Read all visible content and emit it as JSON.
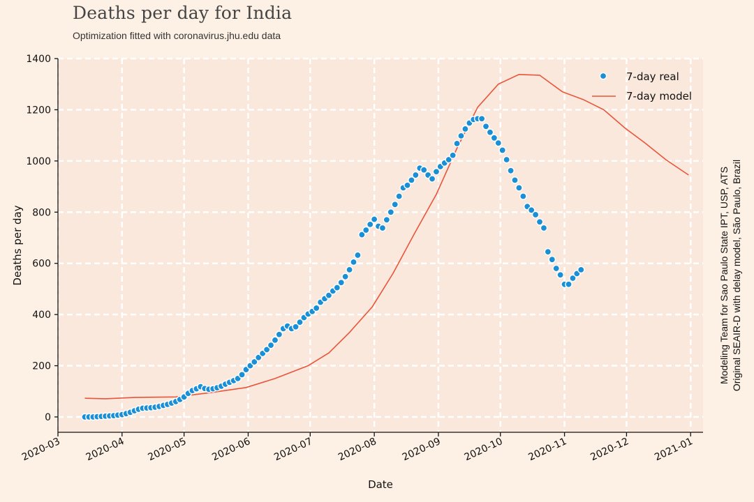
{
  "header": {
    "title": "Deaths per day for India",
    "subtitle": "Optimization fitted with coronavirus.jhu.edu data"
  },
  "credits": {
    "line1": "Modeling Team for Sao Paulo State IPT, USP, ATS",
    "line2": "Original SEAIR-D with delay model, São Paulo, Brazil"
  },
  "colors": {
    "background": "#fdf1e6",
    "plot_background": "#fae8dc",
    "grid": "#ffffff",
    "real": "#1a8fd6",
    "model": "#e8553a"
  },
  "chart_data": {
    "type": "line",
    "xlabel": "Date",
    "ylabel": "Deaths per day",
    "xlim": [
      "2020-03-01",
      "2021-01-07"
    ],
    "ylim": [
      -60,
      1400
    ],
    "x_ticks": [
      "2020-03",
      "2020-04",
      "2020-05",
      "2020-06",
      "2020-07",
      "2020-08",
      "2020-09",
      "2020-10",
      "2020-11",
      "2020-12",
      "2021-01"
    ],
    "y_ticks": [
      0,
      200,
      400,
      600,
      800,
      1000,
      1200,
      1400
    ],
    "grid": true,
    "legend_position": "top-right",
    "series": [
      {
        "name": "7-day real",
        "style": "scatter",
        "points": [
          [
            "2020-03-14",
            0
          ],
          [
            "2020-03-16",
            0
          ],
          [
            "2020-03-18",
            0
          ],
          [
            "2020-03-20",
            1
          ],
          [
            "2020-03-22",
            2
          ],
          [
            "2020-03-24",
            3
          ],
          [
            "2020-03-26",
            4
          ],
          [
            "2020-03-28",
            5
          ],
          [
            "2020-03-30",
            7
          ],
          [
            "2020-04-01",
            9
          ],
          [
            "2020-04-03",
            13
          ],
          [
            "2020-04-05",
            18
          ],
          [
            "2020-04-07",
            24
          ],
          [
            "2020-04-09",
            30
          ],
          [
            "2020-04-11",
            34
          ],
          [
            "2020-04-13",
            35
          ],
          [
            "2020-04-15",
            36
          ],
          [
            "2020-04-17",
            38
          ],
          [
            "2020-04-19",
            41
          ],
          [
            "2020-04-21",
            45
          ],
          [
            "2020-04-23",
            49
          ],
          [
            "2020-04-25",
            54
          ],
          [
            "2020-04-27",
            60
          ],
          [
            "2020-04-29",
            68
          ],
          [
            "2020-05-01",
            78
          ],
          [
            "2020-05-03",
            92
          ],
          [
            "2020-05-05",
            103
          ],
          [
            "2020-05-07",
            110
          ],
          [
            "2020-05-09",
            118
          ],
          [
            "2020-05-11",
            111
          ],
          [
            "2020-05-13",
            108
          ],
          [
            "2020-05-15",
            110
          ],
          [
            "2020-05-17",
            114
          ],
          [
            "2020-05-19",
            120
          ],
          [
            "2020-05-21",
            128
          ],
          [
            "2020-05-23",
            135
          ],
          [
            "2020-05-25",
            142
          ],
          [
            "2020-05-27",
            150
          ],
          [
            "2020-05-29",
            165
          ],
          [
            "2020-05-31",
            185
          ],
          [
            "2020-06-02",
            200
          ],
          [
            "2020-06-04",
            215
          ],
          [
            "2020-06-06",
            232
          ],
          [
            "2020-06-08",
            248
          ],
          [
            "2020-06-10",
            263
          ],
          [
            "2020-06-12",
            280
          ],
          [
            "2020-06-14",
            300
          ],
          [
            "2020-06-16",
            322
          ],
          [
            "2020-06-18",
            345
          ],
          [
            "2020-06-20",
            355
          ],
          [
            "2020-06-22",
            345
          ],
          [
            "2020-06-24",
            352
          ],
          [
            "2020-06-26",
            370
          ],
          [
            "2020-06-28",
            388
          ],
          [
            "2020-06-30",
            402
          ],
          [
            "2020-07-02",
            412
          ],
          [
            "2020-07-04",
            425
          ],
          [
            "2020-07-06",
            448
          ],
          [
            "2020-07-08",
            462
          ],
          [
            "2020-07-10",
            475
          ],
          [
            "2020-07-12",
            492
          ],
          [
            "2020-07-14",
            505
          ],
          [
            "2020-07-16",
            525
          ],
          [
            "2020-07-18",
            548
          ],
          [
            "2020-07-20",
            575
          ],
          [
            "2020-07-22",
            605
          ],
          [
            "2020-07-24",
            632
          ],
          [
            "2020-07-26",
            712
          ],
          [
            "2020-07-28",
            730
          ],
          [
            "2020-07-30",
            752
          ],
          [
            "2020-08-01",
            772
          ],
          [
            "2020-08-03",
            745
          ],
          [
            "2020-08-05",
            738
          ],
          [
            "2020-08-07",
            770
          ],
          [
            "2020-08-09",
            800
          ],
          [
            "2020-08-11",
            830
          ],
          [
            "2020-08-13",
            862
          ],
          [
            "2020-08-15",
            895
          ],
          [
            "2020-08-17",
            905
          ],
          [
            "2020-08-19",
            925
          ],
          [
            "2020-08-21",
            945
          ],
          [
            "2020-08-23",
            972
          ],
          [
            "2020-08-25",
            965
          ],
          [
            "2020-08-27",
            945
          ],
          [
            "2020-08-29",
            930
          ],
          [
            "2020-08-31",
            958
          ],
          [
            "2020-09-02",
            978
          ],
          [
            "2020-09-04",
            992
          ],
          [
            "2020-09-06",
            1005
          ],
          [
            "2020-09-08",
            1022
          ],
          [
            "2020-09-10",
            1068
          ],
          [
            "2020-09-12",
            1098
          ],
          [
            "2020-09-14",
            1125
          ],
          [
            "2020-09-16",
            1148
          ],
          [
            "2020-09-18",
            1162
          ],
          [
            "2020-09-20",
            1165
          ],
          [
            "2020-09-22",
            1165
          ],
          [
            "2020-09-24",
            1135
          ],
          [
            "2020-09-26",
            1112
          ],
          [
            "2020-09-28",
            1090
          ],
          [
            "2020-09-30",
            1070
          ],
          [
            "2020-10-02",
            1042
          ],
          [
            "2020-10-04",
            1005
          ],
          [
            "2020-10-06",
            962
          ],
          [
            "2020-10-08",
            925
          ],
          [
            "2020-10-10",
            895
          ],
          [
            "2020-10-12",
            862
          ],
          [
            "2020-10-14",
            822
          ],
          [
            "2020-10-16",
            808
          ],
          [
            "2020-10-18",
            790
          ],
          [
            "2020-10-20",
            762
          ],
          [
            "2020-10-22",
            738
          ],
          [
            "2020-10-24",
            645
          ],
          [
            "2020-10-26",
            615
          ],
          [
            "2020-10-28",
            580
          ],
          [
            "2020-10-30",
            555
          ],
          [
            "2020-11-01",
            518
          ],
          [
            "2020-11-03",
            518
          ],
          [
            "2020-11-05",
            542
          ],
          [
            "2020-11-07",
            560
          ],
          [
            "2020-11-09",
            575
          ]
        ]
      },
      {
        "name": "7-day model",
        "style": "line",
        "points": [
          [
            "2020-03-14",
            73
          ],
          [
            "2020-03-24",
            71
          ],
          [
            "2020-04-07",
            76
          ],
          [
            "2020-04-27",
            78
          ],
          [
            "2020-05-14",
            95
          ],
          [
            "2020-05-31",
            115
          ],
          [
            "2020-06-14",
            150
          ],
          [
            "2020-06-30",
            200
          ],
          [
            "2020-07-10",
            250
          ],
          [
            "2020-07-20",
            330
          ],
          [
            "2020-07-31",
            430
          ],
          [
            "2020-08-10",
            560
          ],
          [
            "2020-08-20",
            710
          ],
          [
            "2020-08-31",
            870
          ],
          [
            "2020-09-10",
            1050
          ],
          [
            "2020-09-20",
            1210
          ],
          [
            "2020-09-30",
            1300
          ],
          [
            "2020-10-10",
            1338
          ],
          [
            "2020-10-20",
            1335
          ],
          [
            "2020-10-31",
            1270
          ],
          [
            "2020-11-10",
            1240
          ],
          [
            "2020-11-20",
            1200
          ],
          [
            "2020-11-30",
            1130
          ],
          [
            "2020-12-10",
            1070
          ],
          [
            "2020-12-20",
            1005
          ],
          [
            "2020-12-31",
            945
          ]
        ]
      }
    ]
  }
}
